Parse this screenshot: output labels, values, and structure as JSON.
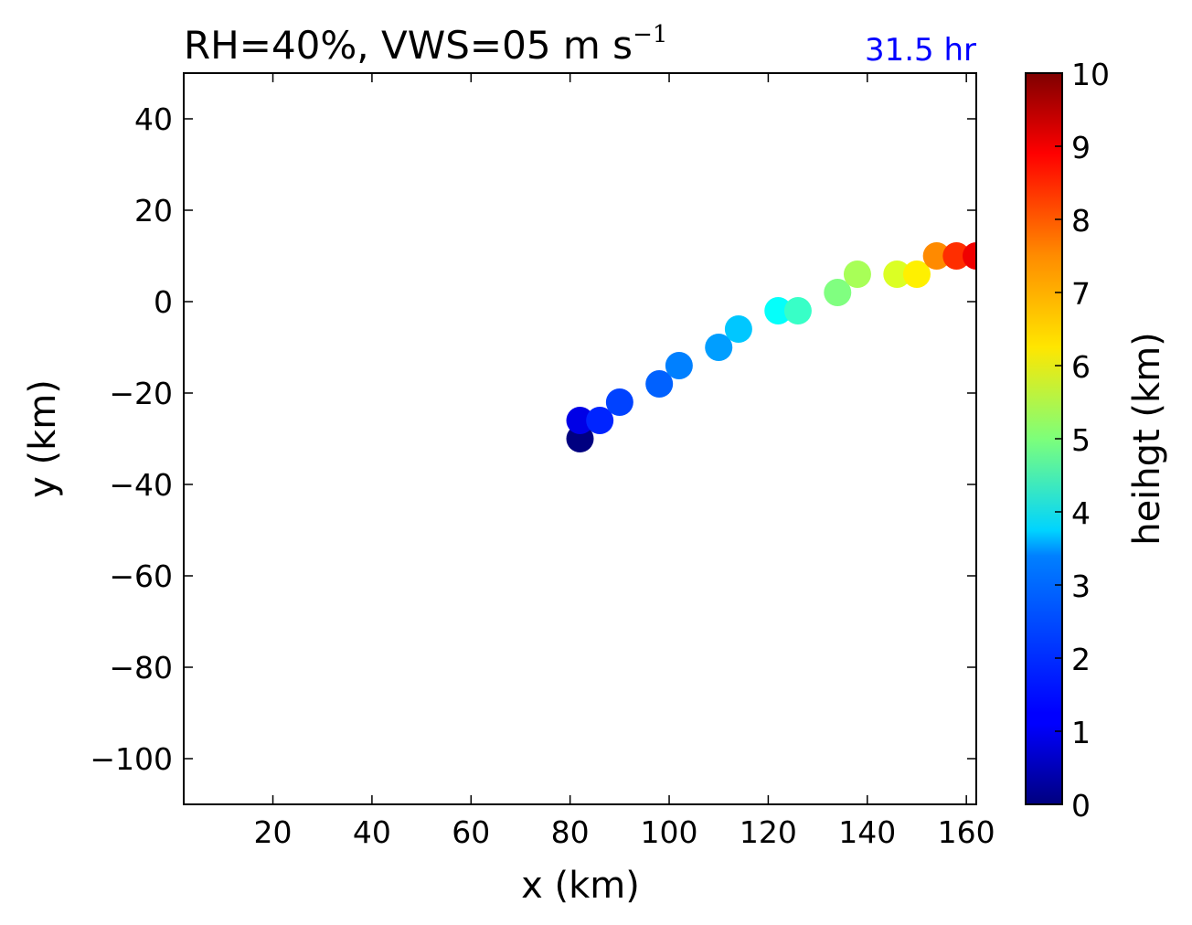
{
  "chart_data": {
    "type": "scatter",
    "title": "RH=40%, VWS=05 m s",
    "title_superscript": "−1",
    "time_label": "31.5 hr",
    "time_label_color": "#0000ff",
    "xlabel": "x (km)",
    "ylabel": "y (km)",
    "xlim": [
      2,
      162
    ],
    "ylim": [
      -110,
      50
    ],
    "xticks": [
      20,
      40,
      60,
      80,
      100,
      120,
      140,
      160
    ],
    "xtick_labels": [
      "20",
      "40",
      "60",
      "80",
      "100",
      "120",
      "140",
      "160"
    ],
    "yticks": [
      40,
      20,
      0,
      -20,
      -40,
      -60,
      -80,
      -100
    ],
    "ytick_labels": [
      "40",
      "20",
      "0",
      "−20",
      "−40",
      "−60",
      "−80",
      "−100"
    ],
    "points": [
      {
        "x": 82,
        "y": -30,
        "z": 0.0
      },
      {
        "x": 82,
        "y": -26,
        "z": 1.0
      },
      {
        "x": 86,
        "y": -26,
        "z": 1.6
      },
      {
        "x": 90,
        "y": -22,
        "z": 1.9
      },
      {
        "x": 98,
        "y": -18,
        "z": 2.2
      },
      {
        "x": 102,
        "y": -14,
        "z": 2.5
      },
      {
        "x": 110,
        "y": -10,
        "z": 2.8
      },
      {
        "x": 114,
        "y": -6,
        "z": 3.2
      },
      {
        "x": 122,
        "y": -2,
        "z": 3.8
      },
      {
        "x": 126,
        "y": -2,
        "z": 4.3
      },
      {
        "x": 134,
        "y": 2,
        "z": 5.0
      },
      {
        "x": 138,
        "y": 6,
        "z": 5.4
      },
      {
        "x": 146,
        "y": 6,
        "z": 5.9
      },
      {
        "x": 150,
        "y": 6,
        "z": 6.4
      },
      {
        "x": 154,
        "y": 10,
        "z": 7.4
      },
      {
        "x": 158,
        "y": 10,
        "z": 8.3
      },
      {
        "x": 162,
        "y": 10,
        "z": 8.9
      }
    ],
    "colorbar": {
      "label": "heihgt (km)",
      "range": [
        0,
        10
      ],
      "ticks": [
        0,
        1,
        2,
        3,
        4,
        5,
        6,
        7,
        8,
        9,
        10
      ],
      "tick_labels": [
        "0",
        "1",
        "2",
        "3",
        "4",
        "5",
        "6",
        "7",
        "8",
        "9",
        "10"
      ],
      "colormap": "jet"
    }
  }
}
